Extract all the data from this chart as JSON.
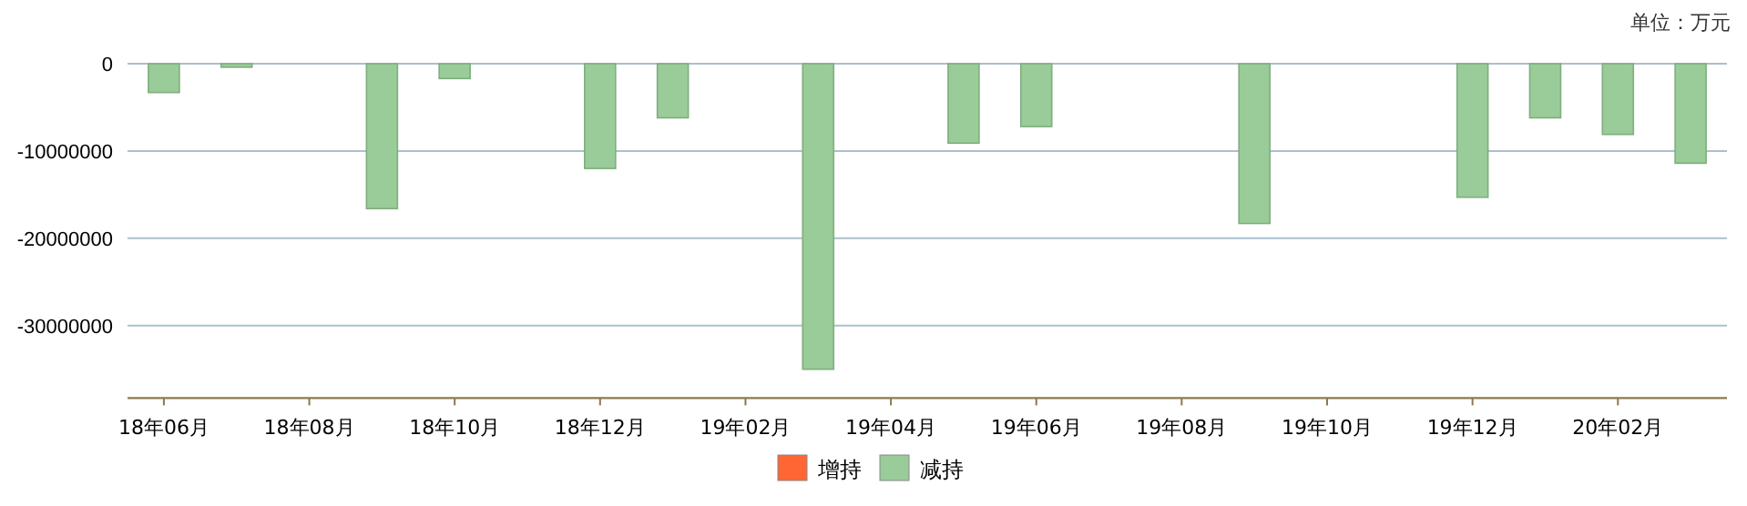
{
  "chart_data": {
    "type": "bar",
    "annotations": [
      "单位：万元"
    ],
    "categories": [
      "18年06月",
      null,
      "18年08月",
      null,
      "18年10月",
      null,
      "18年12月",
      null,
      "19年02月",
      null,
      "19年04月",
      null,
      "19年06月",
      null,
      "19年08月",
      null,
      "19年10月",
      null,
      "19年12月",
      null,
      "20年02月",
      null
    ],
    "series": [
      {
        "name": "增持",
        "color": "#ff6633",
        "values": [
          null,
          null,
          null,
          null,
          null,
          null,
          null,
          null,
          null,
          null,
          null,
          null,
          null,
          null,
          null,
          null,
          null,
          null,
          null,
          null,
          null,
          null
        ]
      },
      {
        "name": "减持",
        "color": "#99cc99",
        "values": [
          -3300000,
          -400000,
          null,
          -16600000,
          -1700000,
          null,
          -12000000,
          -6200000,
          null,
          -35000000,
          null,
          -9100000,
          -7200000,
          null,
          null,
          -18300000,
          null,
          null,
          -15300000,
          -6200000,
          -8100000,
          -11400000
        ]
      }
    ],
    "ylim": [
      -38300000,
      0
    ],
    "yticks": [
      -30000000,
      -20000000,
      -10000000,
      0
    ],
    "grid": "y",
    "legend": "bottom"
  }
}
